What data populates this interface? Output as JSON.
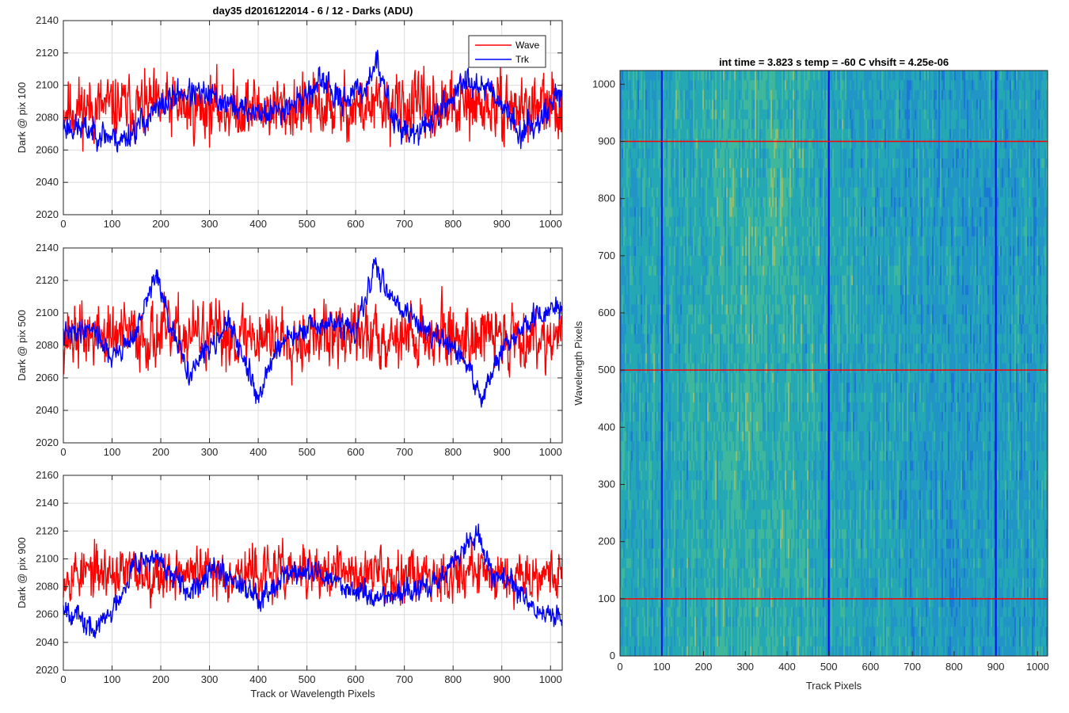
{
  "figure": {
    "main_title": "day35 d2016122014 - 6 / 12 - Darks (ADU)",
    "legend": {
      "entries": [
        {
          "label": "Wave",
          "color": "#ff0000"
        },
        {
          "label": "Trk",
          "color": "#0000ff"
        }
      ],
      "placement": "top-right of first panel"
    }
  },
  "chart_data": [
    {
      "type": "line",
      "ylabel": "Dark @ pix 100",
      "xlabel": "",
      "xlim": [
        0,
        1024
      ],
      "ylim": [
        2020,
        2140
      ],
      "xticks": [
        0,
        100,
        200,
        300,
        400,
        500,
        600,
        700,
        800,
        900,
        1000
      ],
      "yticks": [
        2020,
        2040,
        2060,
        2080,
        2100,
        2120,
        2140
      ],
      "grid": true,
      "series": [
        {
          "name": "Wave",
          "color": "#ff0000",
          "model": {
            "mean": 2086,
            "noise": 14,
            "seed": 11,
            "knots": [
              [
                0,
                2086
              ],
              [
                1024,
                2086
              ]
            ]
          }
        },
        {
          "name": "Trk",
          "color": "#0000ff",
          "model": {
            "mean": 2082,
            "noise": 6,
            "seed": 23,
            "knots": [
              [
                0,
                2075
              ],
              [
                60,
                2072
              ],
              [
                120,
                2066
              ],
              [
                180,
                2082
              ],
              [
                240,
                2096
              ],
              [
                300,
                2093
              ],
              [
                360,
                2086
              ],
              [
                420,
                2082
              ],
              [
                480,
                2090
              ],
              [
                540,
                2103
              ],
              [
                560,
                2090
              ],
              [
                620,
                2098
              ],
              [
                640,
                2116
              ],
              [
                680,
                2078
              ],
              [
                720,
                2068
              ],
              [
                780,
                2086
              ],
              [
                830,
                2104
              ],
              [
                880,
                2098
              ],
              [
                940,
                2070
              ],
              [
                980,
                2080
              ],
              [
                1024,
                2098
              ]
            ]
          }
        }
      ]
    },
    {
      "type": "line",
      "ylabel": "Dark @ pix 500",
      "xlabel": "",
      "xlim": [
        0,
        1024
      ],
      "ylim": [
        2020,
        2140
      ],
      "xticks": [
        0,
        100,
        200,
        300,
        400,
        500,
        600,
        700,
        800,
        900,
        1000
      ],
      "yticks": [
        2020,
        2040,
        2060,
        2080,
        2100,
        2120,
        2140
      ],
      "grid": true,
      "series": [
        {
          "name": "Wave",
          "color": "#ff0000",
          "model": {
            "mean": 2086,
            "noise": 14,
            "seed": 37,
            "knots": [
              [
                0,
                2086
              ],
              [
                1024,
                2086
              ]
            ]
          }
        },
        {
          "name": "Trk",
          "color": "#0000ff",
          "model": {
            "mean": 2085,
            "noise": 5,
            "seed": 41,
            "knots": [
              [
                0,
                2086
              ],
              [
                60,
                2092
              ],
              [
                100,
                2072
              ],
              [
                150,
                2088
              ],
              [
                190,
                2125
              ],
              [
                220,
                2090
              ],
              [
                260,
                2062
              ],
              [
                300,
                2080
              ],
              [
                340,
                2094
              ],
              [
                400,
                2048
              ],
              [
                440,
                2080
              ],
              [
                500,
                2090
              ],
              [
                560,
                2094
              ],
              [
                600,
                2088
              ],
              [
                640,
                2128
              ],
              [
                680,
                2108
              ],
              [
                720,
                2096
              ],
              [
                780,
                2082
              ],
              [
                820,
                2072
              ],
              [
                860,
                2048
              ],
              [
                900,
                2076
              ],
              [
                960,
                2096
              ],
              [
                1024,
                2104
              ]
            ]
          }
        }
      ]
    },
    {
      "type": "line",
      "ylabel": "Dark @ pix 900",
      "xlabel": "Track or Wavelength Pixels",
      "xlim": [
        0,
        1024
      ],
      "ylim": [
        2020,
        2160
      ],
      "xticks": [
        0,
        100,
        200,
        300,
        400,
        500,
        600,
        700,
        800,
        900,
        1000
      ],
      "yticks": [
        2020,
        2040,
        2060,
        2080,
        2100,
        2120,
        2140,
        2160
      ],
      "grid": true,
      "series": [
        {
          "name": "Wave",
          "color": "#ff0000",
          "model": {
            "mean": 2090,
            "noise": 13,
            "seed": 53,
            "knots": [
              [
                0,
                2090
              ],
              [
                1024,
                2090
              ]
            ]
          }
        },
        {
          "name": "Trk",
          "color": "#0000ff",
          "model": {
            "mean": 2080,
            "noise": 6,
            "seed": 67,
            "knots": [
              [
                0,
                2068
              ],
              [
                60,
                2048
              ],
              [
                100,
                2062
              ],
              [
                150,
                2100
              ],
              [
                200,
                2098
              ],
              [
                260,
                2072
              ],
              [
                300,
                2096
              ],
              [
                360,
                2084
              ],
              [
                400,
                2072
              ],
              [
                460,
                2090
              ],
              [
                520,
                2090
              ],
              [
                580,
                2080
              ],
              [
                640,
                2072
              ],
              [
                700,
                2076
              ],
              [
                760,
                2080
              ],
              [
                800,
                2098
              ],
              [
                850,
                2118
              ],
              [
                880,
                2090
              ],
              [
                920,
                2082
              ],
              [
                980,
                2060
              ],
              [
                1024,
                2058
              ]
            ]
          }
        }
      ]
    },
    {
      "type": "heatmap",
      "title": "int time = 3.823 s   temp = -60 C   vhsift = 4.25e-06",
      "xlabel": "Track Pixels",
      "ylabel": "Wavelength Pixels",
      "xlim": [
        0,
        1024
      ],
      "ylim": [
        0,
        1024
      ],
      "xticks": [
        0,
        100,
        200,
        300,
        400,
        500,
        600,
        700,
        800,
        900,
        1000
      ],
      "yticks": [
        0,
        100,
        200,
        300,
        400,
        500,
        600,
        700,
        800,
        900,
        1000
      ],
      "colormap": [
        "#1b78d4",
        "#2196c6",
        "#23a8b4",
        "#3fb79c",
        "#8bbe73"
      ],
      "vertical_lines": {
        "x": [
          100,
          500,
          900
        ],
        "color": "#0000ff"
      },
      "horizontal_lines": {
        "y": [
          100,
          500,
          900
        ],
        "color": "#ff0000"
      }
    }
  ]
}
